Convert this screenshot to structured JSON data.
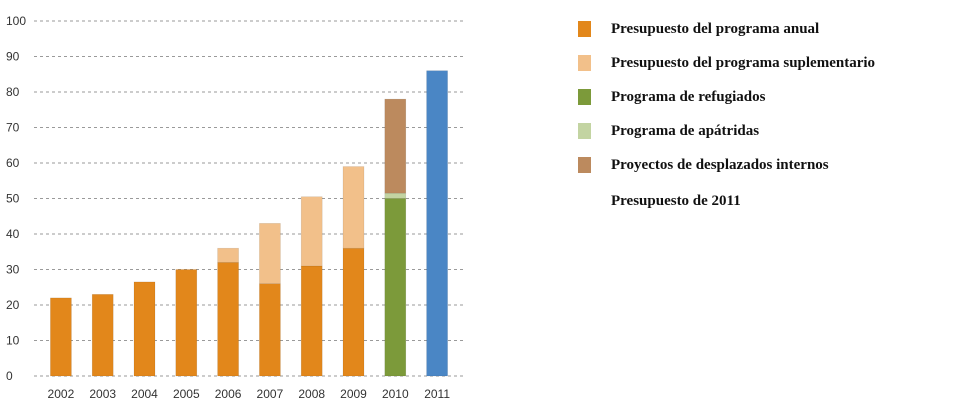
{
  "chart_data": {
    "type": "bar",
    "stacked": true,
    "categories": [
      "2002",
      "2003",
      "2004",
      "2005",
      "2006",
      "2007",
      "2008",
      "2009",
      "2010",
      "2011"
    ],
    "series": [
      {
        "name": "Presupuesto del programa anual",
        "color": "#E2871B",
        "values": [
          22,
          23,
          26.5,
          30,
          32,
          26,
          31,
          36,
          0,
          0
        ]
      },
      {
        "name": "Presupuesto del programa suplementario",
        "color": "#F2C08A",
        "values": [
          0,
          0,
          0,
          0,
          4,
          17,
          19.5,
          23,
          0,
          0
        ]
      },
      {
        "name": "Programa de refugiados",
        "color": "#7C9A3A",
        "values": [
          0,
          0,
          0,
          0,
          0,
          0,
          0,
          0,
          50,
          0
        ]
      },
      {
        "name": "Programa de apátridas",
        "color": "#C3D4A2",
        "values": [
          0,
          0,
          0,
          0,
          0,
          0,
          0,
          0,
          1.5,
          0
        ]
      },
      {
        "name": "Proyectos de desplazados internos",
        "color": "#BC8A5E",
        "values": [
          0,
          0,
          0,
          0,
          0,
          0,
          0,
          0,
          26.5,
          0
        ]
      },
      {
        "name": "Presupuesto de 2011",
        "color": "#4A86C5",
        "values": [
          0,
          0,
          0,
          0,
          0,
          0,
          0,
          0,
          0,
          86
        ]
      }
    ],
    "legend_swatch_colors": [
      "#E2871B",
      "#F2C08A",
      "#7C9A3A",
      "#C3D4A2",
      "#BC8A5E",
      "#4A86C5"
    ],
    "ylim": [
      0,
      100
    ],
    "yticks": [
      0,
      10,
      20,
      30,
      40,
      50,
      60,
      70,
      80,
      90,
      100
    ],
    "grid": true,
    "legend_position": "right",
    "title": "",
    "xlabel": "",
    "ylabel": ""
  },
  "legend": {
    "items": [
      {
        "label": "Presupuesto del programa anual",
        "color": "#E2871B"
      },
      {
        "label": "Presupuesto del programa suplementario",
        "color": "#F2C08A"
      },
      {
        "label": "Programa de refugiados",
        "color": "#7C9A3A"
      },
      {
        "label": "Programa de apátridas",
        "color": "#C3D4A2"
      },
      {
        "label": "Proyectos de desplazados internos",
        "color": "#BC8A5E"
      },
      {
        "label": "Presupuesto de 2011",
        "color": null
      }
    ]
  }
}
